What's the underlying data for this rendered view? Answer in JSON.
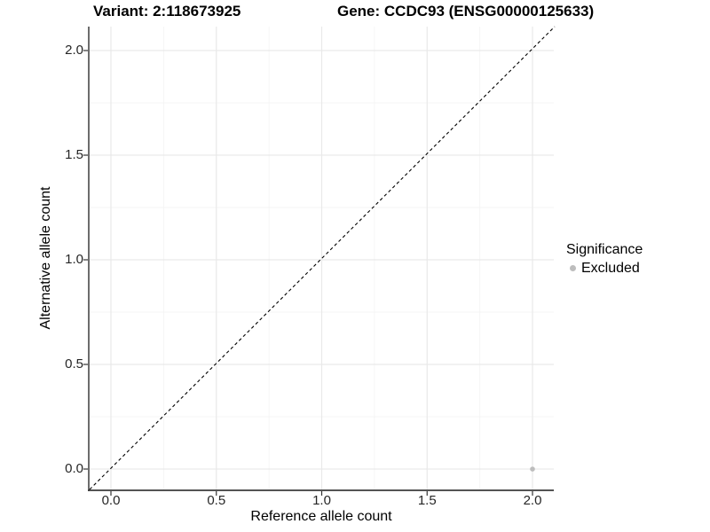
{
  "titles": {
    "variant": "Variant: 2:118673925",
    "gene": "Gene: CCDC93 (ENSG00000125633)"
  },
  "axes": {
    "x_label": "Reference allele count",
    "y_label": "Alternative allele count"
  },
  "legend": {
    "title": "Significance",
    "items": [
      {
        "label": "Excluded",
        "color": "#bdbdbd"
      }
    ]
  },
  "chart_data": {
    "type": "scatter",
    "title": "Variant: 2:118673925 — Gene: CCDC93 (ENSG00000125633)",
    "xlabel": "Reference allele count",
    "ylabel": "Alternative allele count",
    "xlim": [
      -0.105,
      2.105
    ],
    "ylim": [
      -0.105,
      2.105
    ],
    "x_ticks": [
      0.0,
      0.5,
      1.0,
      1.5,
      2.0
    ],
    "y_ticks": [
      0.0,
      0.5,
      1.0,
      1.5,
      2.0
    ],
    "x_minor_ticks": [
      0.25,
      0.75,
      1.25,
      1.75
    ],
    "y_minor_ticks": [
      0.25,
      0.75,
      1.25,
      1.75
    ],
    "grid": true,
    "legend_position": "right",
    "series": [
      {
        "name": "Excluded",
        "color": "#bdbdbd",
        "points": [
          {
            "x": 2.0,
            "y": 0.0
          }
        ]
      }
    ],
    "reference_line": {
      "equation": "y = x",
      "style": "dashed",
      "color": "#000000"
    }
  },
  "colors": {
    "background": "#ffffff",
    "grid_major": "#e9e9e9",
    "grid_minor": "#f4f4f4",
    "axis_line": "#3c3c3c",
    "tick": "#333333",
    "point": "#bdbdbd",
    "dashed_line": "#000000"
  }
}
